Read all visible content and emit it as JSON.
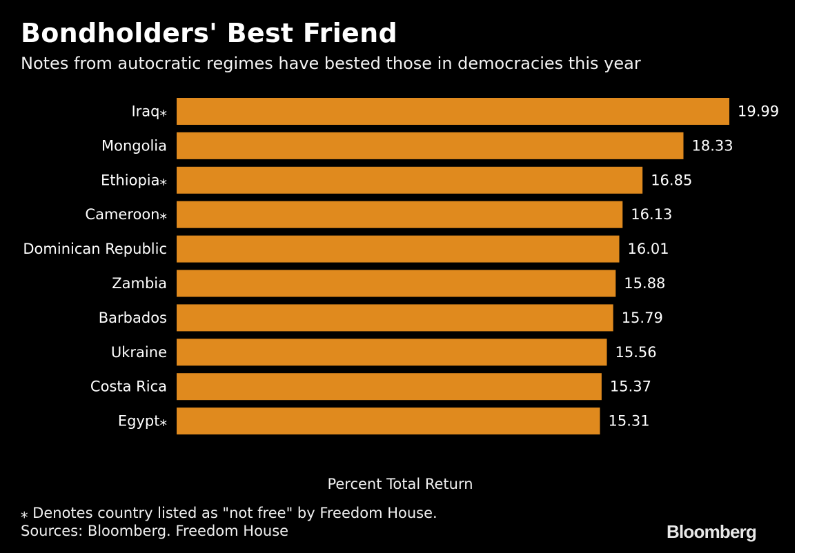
{
  "title": "Bondholders' Best Friend",
  "subtitle": "Notes from autocratic regimes have bested those in democracies this year",
  "footnote": "⁎ Denotes country listed as \"not free\" by Freedom House.",
  "sources": "Sources: Bloomberg. Freedom House",
  "brand": "Bloomberg",
  "colors": {
    "background": "#000000",
    "bar": "#E08A1E",
    "text": "#FFFFFF"
  },
  "chart_data": {
    "type": "bar",
    "orientation": "horizontal",
    "categories": [
      "Iraq⁎",
      "Mongolia",
      "Ethiopia⁎",
      "Cameroon⁎",
      "Dominican Republic",
      "Zambia",
      "Barbados",
      "Ukraine",
      "Costa Rica",
      "Egypt⁎"
    ],
    "values": [
      19.99,
      18.33,
      16.85,
      16.13,
      16.01,
      15.88,
      15.79,
      15.56,
      15.37,
      15.31
    ],
    "value_labels": [
      "19.99",
      "18.33",
      "16.85",
      "16.13",
      "16.01",
      "15.88",
      "15.79",
      "15.56",
      "15.37",
      "15.31"
    ],
    "xlabel": "Percent Total Return",
    "ylabel": "",
    "xlim": [
      0,
      19.99
    ],
    "grid": false,
    "legend": "none"
  }
}
